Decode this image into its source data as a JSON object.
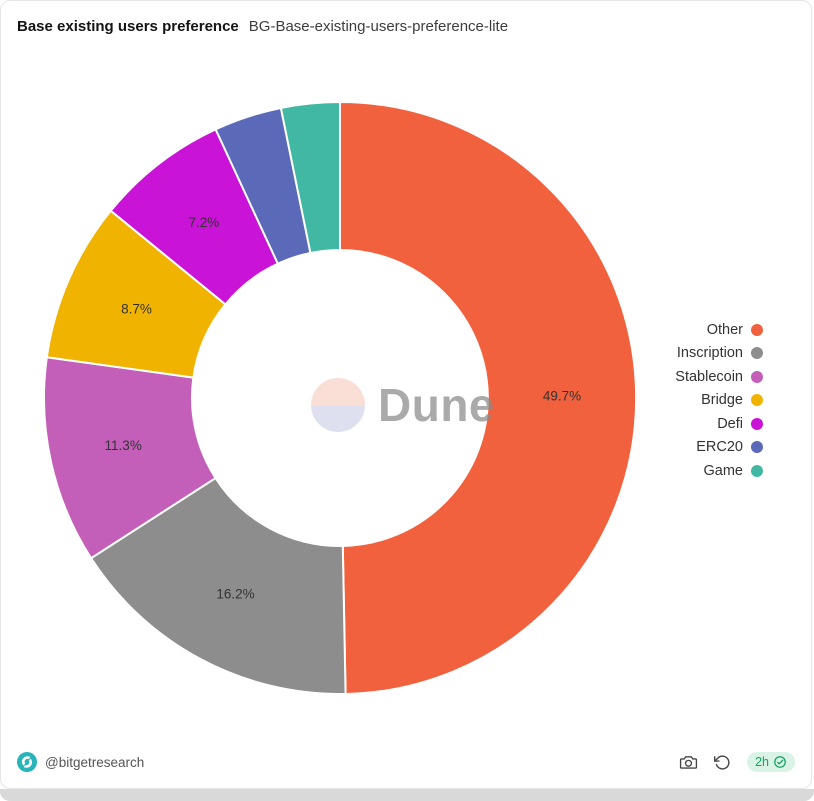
{
  "header": {
    "title": "Base existing users preference",
    "subtitle": "BG-Base-existing-users-preference-lite"
  },
  "watermark": {
    "text": "Dune"
  },
  "chart_data": {
    "type": "pie",
    "donut": true,
    "title": "Base existing users preference",
    "categories": [
      "Other",
      "Inscription",
      "Stablecoin",
      "Bridge",
      "Defi",
      "ERC20",
      "Game"
    ],
    "values": [
      49.7,
      16.2,
      11.3,
      8.7,
      7.2,
      3.7,
      3.2
    ],
    "slice_labels": [
      "49.7%",
      "16.2%",
      "11.3%",
      "8.7%",
      "7.2%",
      "",
      ""
    ],
    "colors": [
      "#f2613e",
      "#8d8d8d",
      "#c45fb9",
      "#f0b400",
      "#c913d6",
      "#5a69b8",
      "#41b8a4"
    ],
    "label_color": "#333333",
    "legend_position": "right",
    "inner_radius_ratio": 0.5
  },
  "footer": {
    "handle": "@bitgetresearch",
    "badge": {
      "text": "2h"
    }
  }
}
